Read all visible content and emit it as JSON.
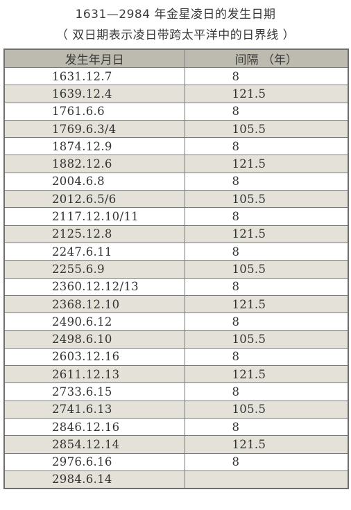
{
  "title": "1631—2984 年金星凌日的发生日期",
  "subtitle": "（ 双日期表示凌日带跨太平洋中的日界线 ）",
  "table": {
    "headers": [
      "发生年月日",
      "间隔 （年）"
    ],
    "rows": [
      {
        "date": "1631.12.7",
        "gap": "8"
      },
      {
        "date": "1639.12.4",
        "gap": "121.5"
      },
      {
        "date": "1761.6.6",
        "gap": "8"
      },
      {
        "date": "1769.6.3/4",
        "gap": "105.5"
      },
      {
        "date": "1874.12.9",
        "gap": "8"
      },
      {
        "date": "1882.12.6",
        "gap": "121.5"
      },
      {
        "date": "2004.6.8",
        "gap": "8"
      },
      {
        "date": "2012.6.5/6",
        "gap": "105.5"
      },
      {
        "date": "2117.12.10/11",
        "gap": "8"
      },
      {
        "date": "2125.12.8",
        "gap": "121.5"
      },
      {
        "date": "2247.6.11",
        "gap": "8"
      },
      {
        "date": "2255.6.9",
        "gap": "105.5"
      },
      {
        "date": "2360.12.12/13",
        "gap": "8"
      },
      {
        "date": "2368.12.10",
        "gap": "121.5"
      },
      {
        "date": "2490.6.12",
        "gap": "8"
      },
      {
        "date": "2498.6.10",
        "gap": "105.5"
      },
      {
        "date": "2603.12.16",
        "gap": "8"
      },
      {
        "date": "2611.12.13",
        "gap": "121.5"
      },
      {
        "date": "2733.6.15",
        "gap": "8"
      },
      {
        "date": "2741.6.13",
        "gap": "105.5"
      },
      {
        "date": "2846.12.16",
        "gap": "8"
      },
      {
        "date": "2854.12.14",
        "gap": "121.5"
      },
      {
        "date": "2976.6.16",
        "gap": "8"
      },
      {
        "date": "2984.6.14",
        "gap": ""
      }
    ]
  },
  "colors": {
    "header_bg": "#bdbbb0",
    "row_alt_bg": "#e4e1d8",
    "border": "#7a7a7a"
  }
}
